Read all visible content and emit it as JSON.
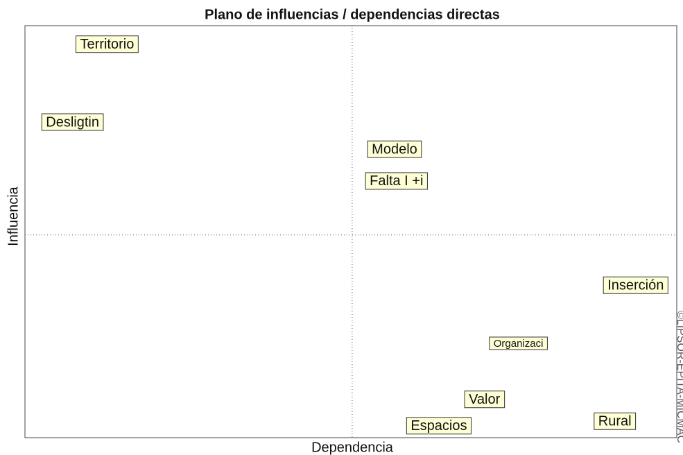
{
  "chart_data": {
    "type": "scatter",
    "title": "Plano de influencias / dependencias directas",
    "x_label": "Dependencia",
    "y_label": "Influencia",
    "annotation": "©LIPSOR-EPITA-MICMAC",
    "labels": [
      "Territorio",
      "Desligtin",
      "Modelo",
      "Falta I +i",
      "Inserción",
      "Organizaci",
      "Valor",
      "Espacios",
      "Rural"
    ],
    "x": [
      12.6,
      7.3,
      56.7,
      57.0,
      93.7,
      75.7,
      70.5,
      63.5,
      90.5
    ],
    "values": [
      95.5,
      76.6,
      70.0,
      62.3,
      37.0,
      22.9,
      9.3,
      2.9,
      4.0
    ],
    "xlim": [
      0,
      100
    ],
    "ylim": [
      0,
      100
    ],
    "xmid": 50.2,
    "ymid": 49.2,
    "color": "#ffffd6"
  }
}
